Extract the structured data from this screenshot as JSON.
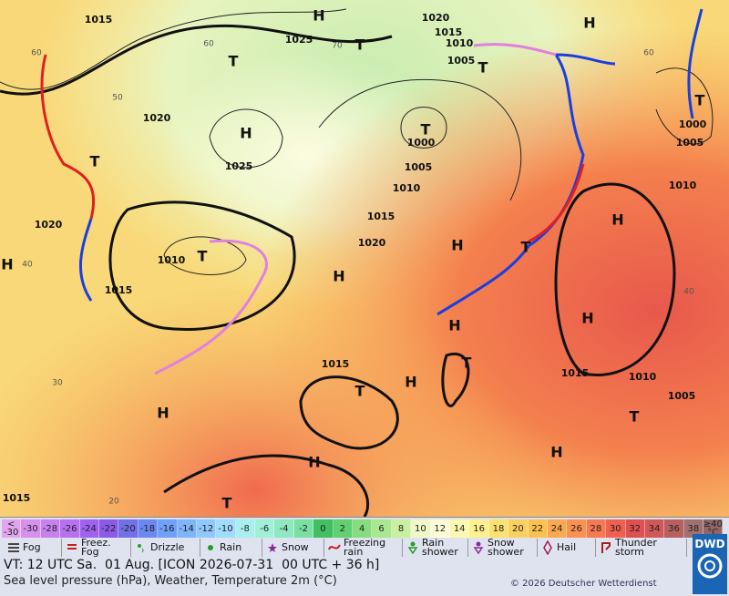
{
  "map_labels": {
    "isobars": [
      "1015",
      "1020",
      "1025",
      "1015",
      "1010",
      "1005",
      "1020",
      "1025",
      "1000",
      "1005",
      "1010",
      "1015",
      "1020",
      "1020",
      "1010",
      "1015",
      "1015",
      "1015",
      "1010",
      "1005",
      "1000",
      "1005",
      "1010",
      "1015"
    ],
    "centers": [
      "H",
      "H",
      "H",
      "T",
      "T",
      "T",
      "T",
      "T",
      "T",
      "T",
      "H",
      "H",
      "H",
      "H",
      "T",
      "H",
      "H",
      "T",
      "H",
      "T",
      "H",
      "H",
      "H",
      "T",
      "T"
    ],
    "isotherms": [
      "60",
      "50",
      "40",
      "30",
      "20",
      "70",
      "60",
      "40",
      "60"
    ]
  },
  "legend": {
    "scale_labels": [
      "< -30",
      "-30",
      "-28",
      "-26",
      "-24",
      "-22",
      "-20",
      "-18",
      "-16",
      "-14",
      "-12",
      "-10",
      "-8",
      "-6",
      "-4",
      "-2",
      "0",
      "2",
      "4",
      "6",
      "8",
      "10",
      "12",
      "14",
      "16",
      "18",
      "20",
      "22",
      "24",
      "26",
      "28",
      "30",
      "32",
      "34",
      "36",
      "38",
      "≥40 °C"
    ],
    "scale_colors": [
      "#e2a6f0",
      "#d890f0",
      "#c880f0",
      "#b870f0",
      "#a060f0",
      "#8c5ae8",
      "#7070e8",
      "#6c88f0",
      "#70a0f8",
      "#80b4f8",
      "#90c8fc",
      "#a0dcfc",
      "#a8f0f0",
      "#a0f0d8",
      "#90e8c0",
      "#78e0a0",
      "#40c060",
      "#60d070",
      "#88dc80",
      "#a8e890",
      "#c8f0a0",
      "#f0f8c8",
      "#fcfcd8",
      "#fcf8b0",
      "#fcf090",
      "#fce070",
      "#fcd060",
      "#fcc050",
      "#fca850",
      "#fc9050",
      "#f87850",
      "#f06050",
      "#e05050",
      "#d05858",
      "#b86060",
      "#a07070",
      "#906868"
    ],
    "weather": [
      "Fog",
      "Freez. Fog",
      "Drizzle",
      "Rain",
      "Snow",
      "Freezing rain",
      "Rain shower",
      "Snow shower",
      "Hail",
      "Thunder storm"
    ]
  },
  "footer": {
    "valid_time": "VT: 12 UTC Sa.  01 Aug. [ICON 2026-07-31  00 UTC + 36 h]",
    "subtitle": "Sea level pressure (hPa), Weather, Temperature 2m (°C)",
    "copyright": "© 2026 Deutscher Wetterdienst",
    "logo": "DWD"
  }
}
